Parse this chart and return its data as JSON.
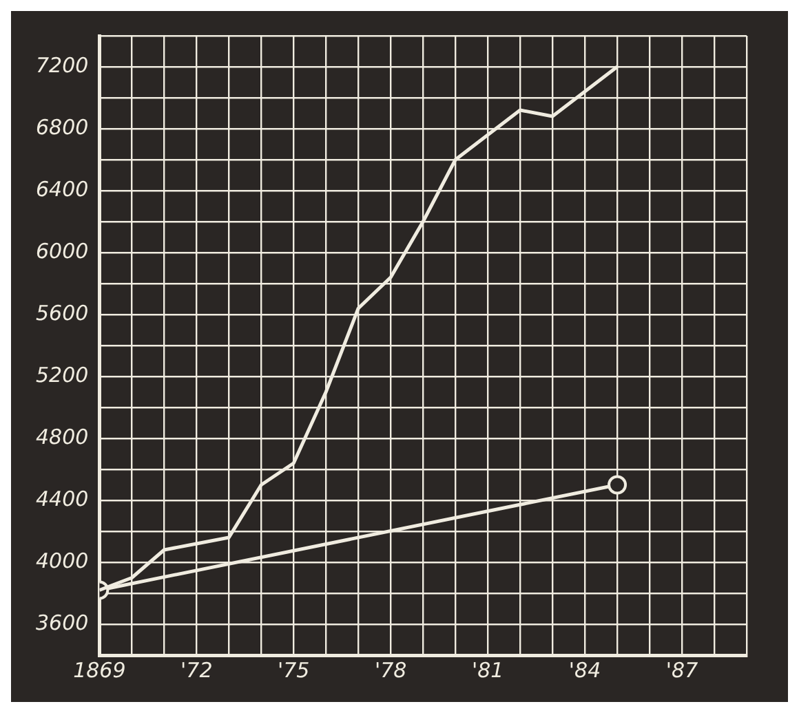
{
  "chart_data": {
    "type": "line",
    "x": [
      1869,
      1870,
      1871,
      1872,
      1873,
      1874,
      1875,
      1876,
      1877,
      1878,
      1879,
      1880,
      1881,
      1882,
      1883,
      1884,
      1885
    ],
    "series": [
      {
        "color": "#f0ece0",
        "marker": "none",
        "values": [
          3820,
          3900,
          4080,
          4120,
          4160,
          4500,
          4640,
          5100,
          5640,
          5840,
          6200,
          6600,
          6760,
          6920,
          6880,
          7040,
          7200
        ]
      },
      {
        "color": "#f0ece0",
        "marker": "circle",
        "x": [
          1869,
          1885
        ],
        "values": [
          3820,
          4500
        ]
      }
    ],
    "xlim": [
      1869,
      1889
    ],
    "xticks": [
      {
        "value": 1869,
        "label": "1869"
      },
      {
        "value": 1870,
        "label": null
      },
      {
        "value": 1871,
        "label": null
      },
      {
        "value": 1872,
        "label": "'72"
      },
      {
        "value": 1873,
        "label": null
      },
      {
        "value": 1874,
        "label": null
      },
      {
        "value": 1875,
        "label": "'75"
      },
      {
        "value": 1876,
        "label": null
      },
      {
        "value": 1877,
        "label": null
      },
      {
        "value": 1878,
        "label": "'78"
      },
      {
        "value": 1879,
        "label": null
      },
      {
        "value": 1880,
        "label": null
      },
      {
        "value": 1881,
        "label": "'81"
      },
      {
        "value": 1882,
        "label": null
      },
      {
        "value": 1883,
        "label": null
      },
      {
        "value": 1884,
        "label": "'84"
      },
      {
        "value": 1885,
        "label": null
      },
      {
        "value": 1886,
        "label": null
      },
      {
        "value": 1887,
        "label": "'87"
      },
      {
        "value": 1888,
        "label": null
      },
      {
        "value": 1889,
        "label": null
      }
    ],
    "ylim": [
      3400,
      7400
    ],
    "yticks": [
      {
        "value": 3400,
        "label": null
      },
      3600,
      {
        "value": 3800,
        "label": null
      },
      4000,
      {
        "value": 4200,
        "label": null
      },
      4400,
      {
        "value": 4600,
        "label": null
      },
      4800,
      {
        "value": 5000,
        "label": null
      },
      5200,
      {
        "value": 5400,
        "label": null
      },
      5600,
      {
        "value": 5800,
        "label": null
      },
      6000,
      {
        "value": 6200,
        "label": null
      },
      6400,
      {
        "value": 6600,
        "label": null
      },
      6800,
      {
        "value": 7000,
        "label": null
      },
      7200,
      {
        "value": 7400,
        "label": null
      }
    ],
    "grid": true,
    "legend": false,
    "line_style": "solid"
  }
}
